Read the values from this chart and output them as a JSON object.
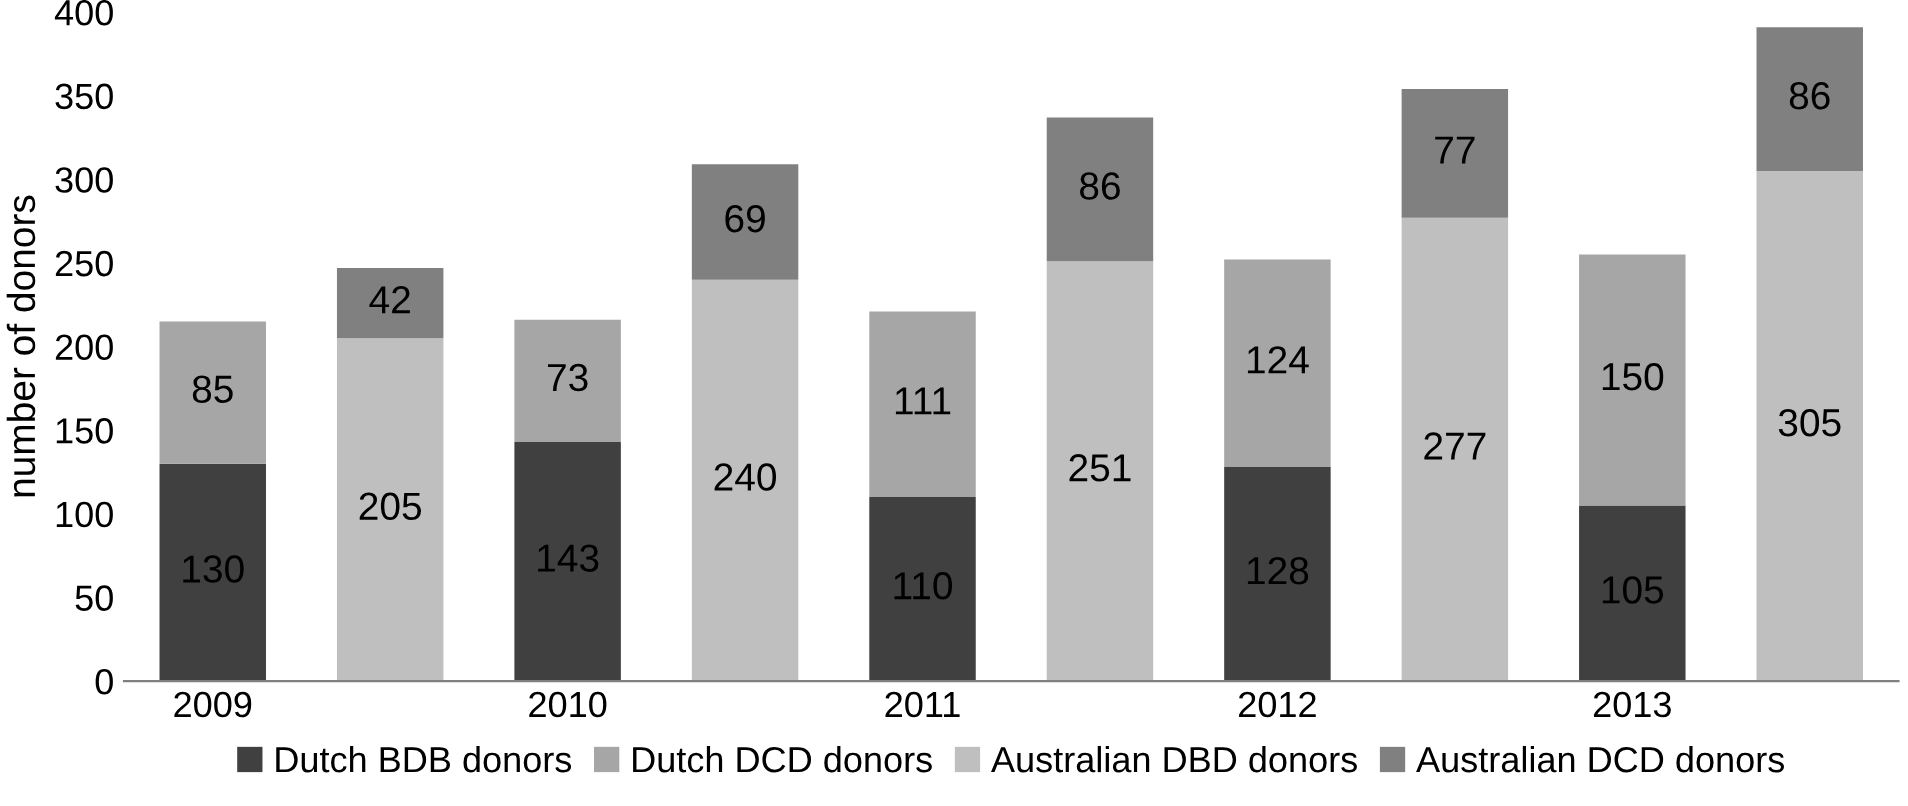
{
  "chart_data": {
    "type": "bar",
    "stacked": true,
    "ylabel": "number of donors",
    "categories": [
      "2009",
      null,
      "2010",
      null,
      "2011",
      null,
      "2012",
      null,
      "2013",
      null
    ],
    "series": [
      {
        "name": "Dutch BDB donors",
        "color": "#404040",
        "values": [
          130,
          null,
          143,
          null,
          110,
          null,
          128,
          null,
          105,
          null
        ]
      },
      {
        "name": "Dutch DCD donors",
        "color": "#a6a6a6",
        "values": [
          85,
          null,
          73,
          null,
          111,
          null,
          124,
          null,
          150,
          null
        ]
      },
      {
        "name": "Australian DBD donors",
        "color": "#bfbfbf",
        "values": [
          null,
          205,
          null,
          240,
          null,
          251,
          null,
          277,
          null,
          305
        ]
      },
      {
        "name": "Australian DCD donors",
        "color": "#808080",
        "values": [
          null,
          42,
          null,
          69,
          null,
          86,
          null,
          77,
          null,
          86
        ]
      }
    ],
    "ylim": [
      0,
      400
    ],
    "yticks": [
      0,
      50,
      100,
      150,
      200,
      250,
      300,
      350,
      400
    ],
    "data_labels": true,
    "legend": "bottom",
    "grid": false
  }
}
